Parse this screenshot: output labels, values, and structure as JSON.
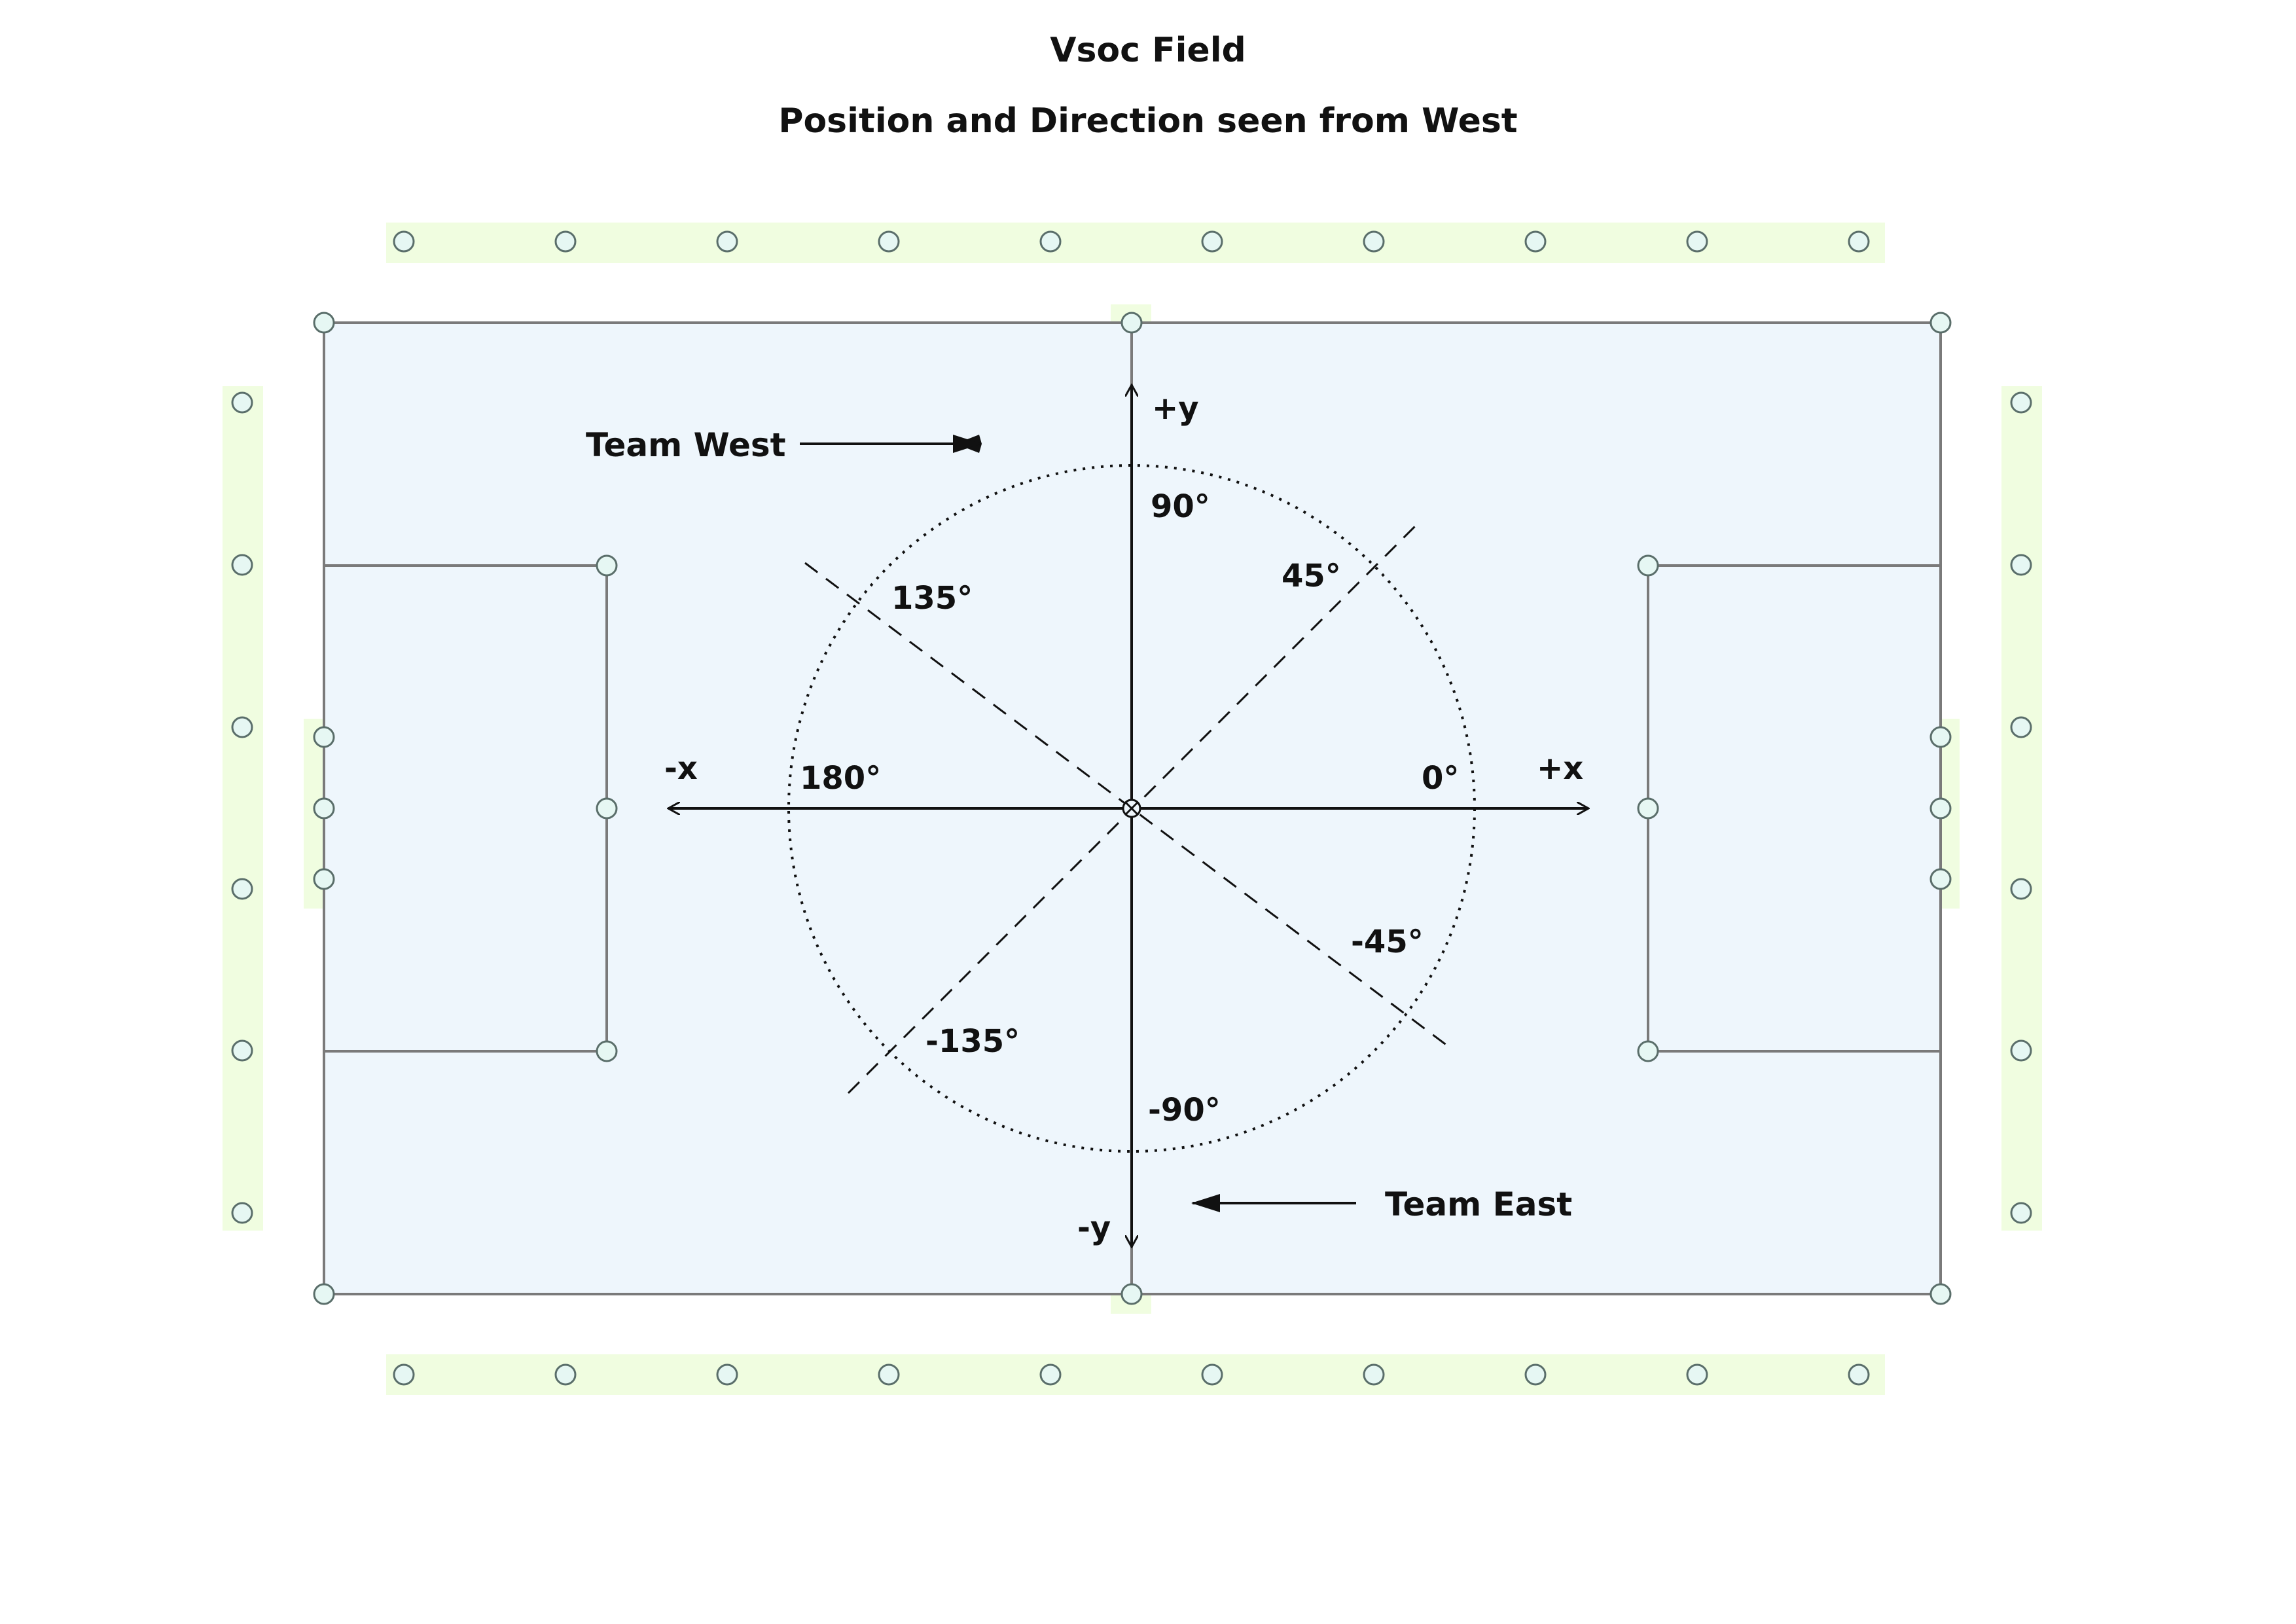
{
  "title": "Vsoc Field",
  "subtitle": "Position and Direction seen from West",
  "axes": {
    "plus_x": "+x",
    "minus_x": "-x",
    "plus_y": "+y",
    "minus_y": "-y"
  },
  "angles": {
    "a0": "0°",
    "a45": "45°",
    "a90": "90°",
    "a135": "135°",
    "a180": "180°",
    "am45": "-45°",
    "am90": "-90°",
    "am135": "-135°"
  },
  "teams": {
    "west": "Team West",
    "east": "Team East"
  },
  "colors": {
    "field": "#eef6fc",
    "marker_band": "#f0fde0",
    "line": "#7a7a7a",
    "marker_fill": "#e6f7f3",
    "marker_stroke": "#5a6e6a",
    "ink": "#111111"
  }
}
